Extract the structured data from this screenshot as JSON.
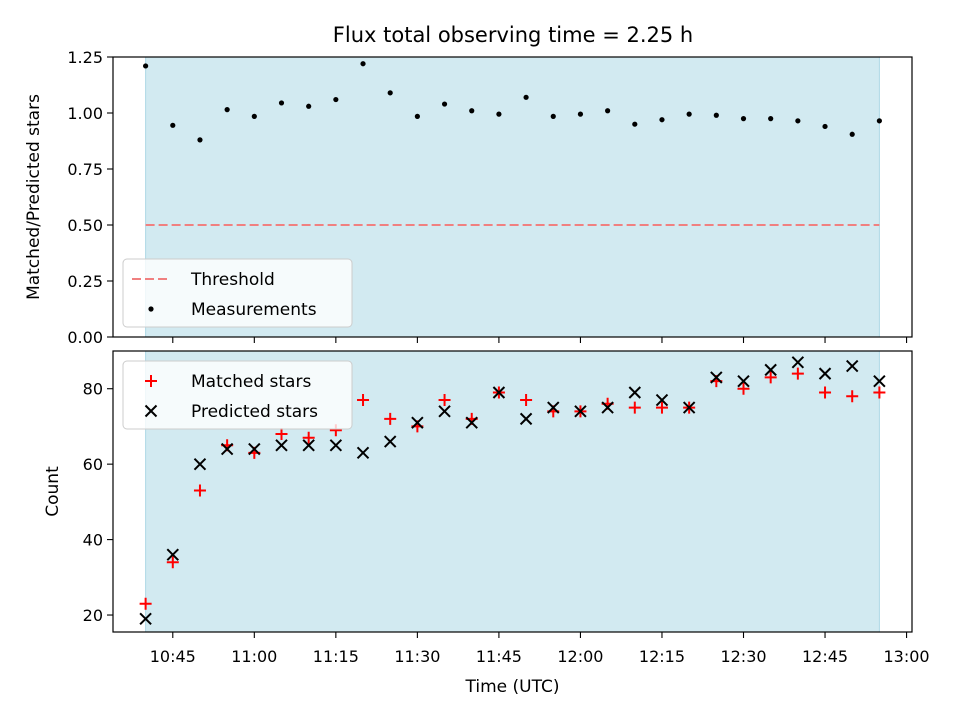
{
  "title": "Flux total observing time = 2.25 h",
  "colors": {
    "shade": "#add8e6",
    "threshold": "#f08080",
    "measurements": "#000000",
    "matched": "#ff0000",
    "predicted": "#000000"
  },
  "chart_data": [
    {
      "type": "scatter",
      "ylabel": "Matched/Predicted stars",
      "xlabel": "",
      "xlim": [
        "10:34",
        "13:01"
      ],
      "ylim": [
        0,
        1.25
      ],
      "yticks": [
        "0.00",
        "0.25",
        "0.50",
        "0.75",
        "1.00",
        "1.25"
      ],
      "shaded_span": [
        "10:40",
        "12:55"
      ],
      "legend": {
        "placement": "lower-left",
        "entries": [
          "Threshold",
          "Measurements"
        ]
      },
      "threshold": {
        "name": "Threshold",
        "value": 0.5,
        "x_range": [
          "10:40",
          "12:55"
        ],
        "style": "dashed"
      },
      "series": [
        {
          "name": "Measurements",
          "x": [
            "10:40",
            "10:45",
            "10:50",
            "10:55",
            "11:00",
            "11:05",
            "11:10",
            "11:15",
            "11:20",
            "11:25",
            "11:30",
            "11:35",
            "11:40",
            "11:45",
            "11:50",
            "11:55",
            "12:00",
            "12:05",
            "12:10",
            "12:15",
            "12:20",
            "12:25",
            "12:30",
            "12:35",
            "12:40",
            "12:45",
            "12:50",
            "12:55"
          ],
          "y": [
            1.21,
            0.945,
            0.88,
            1.015,
            0.985,
            1.045,
            1.03,
            1.06,
            1.22,
            1.09,
            0.985,
            1.04,
            1.01,
            0.995,
            1.07,
            0.985,
            0.995,
            1.01,
            0.95,
            0.97,
            0.995,
            0.99,
            0.975,
            0.975,
            0.965,
            0.94,
            0.905,
            0.965
          ]
        }
      ]
    },
    {
      "type": "scatter",
      "ylabel": "Count",
      "xlabel": "Time (UTC)",
      "xlim": [
        "10:34",
        "13:01"
      ],
      "ylim": [
        15.5,
        90
      ],
      "yticks": [
        "20",
        "40",
        "60",
        "80"
      ],
      "xticks": [
        "10:45",
        "11:00",
        "11:15",
        "11:30",
        "11:45",
        "12:00",
        "12:15",
        "12:30",
        "12:45",
        "13:00"
      ],
      "shaded_span": [
        "10:40",
        "12:55"
      ],
      "legend": {
        "placement": "top-left",
        "entries": [
          "Matched stars",
          "Predicted stars"
        ]
      },
      "series": [
        {
          "name": "Matched stars",
          "marker": "+",
          "x": [
            "10:40",
            "10:45",
            "10:50",
            "10:55",
            "11:00",
            "11:05",
            "11:10",
            "11:15",
            "11:20",
            "11:25",
            "11:30",
            "11:35",
            "11:40",
            "11:45",
            "11:50",
            "11:55",
            "12:00",
            "12:05",
            "12:10",
            "12:15",
            "12:20",
            "12:25",
            "12:30",
            "12:35",
            "12:40",
            "12:45",
            "12:50",
            "12:55"
          ],
          "y": [
            23,
            34,
            53,
            65,
            63,
            68,
            67,
            69,
            77,
            72,
            70,
            77,
            72,
            79,
            77,
            74,
            74,
            76,
            75,
            75,
            75,
            82,
            80,
            83,
            84,
            79,
            78,
            79
          ]
        },
        {
          "name": "Predicted stars",
          "marker": "x",
          "x": [
            "10:40",
            "10:45",
            "10:50",
            "10:55",
            "11:00",
            "11:05",
            "11:10",
            "11:15",
            "11:20",
            "11:25",
            "11:30",
            "11:35",
            "11:40",
            "11:45",
            "11:50",
            "11:55",
            "12:00",
            "12:05",
            "12:10",
            "12:15",
            "12:20",
            "12:25",
            "12:30",
            "12:35",
            "12:40",
            "12:45",
            "12:50",
            "12:55"
          ],
          "y": [
            19,
            36,
            60,
            64,
            64,
            65,
            65,
            65,
            63,
            66,
            71,
            74,
            71,
            79,
            72,
            75,
            74,
            75,
            79,
            77,
            75,
            83,
            82,
            85,
            87,
            84,
            86,
            82
          ]
        }
      ]
    }
  ]
}
